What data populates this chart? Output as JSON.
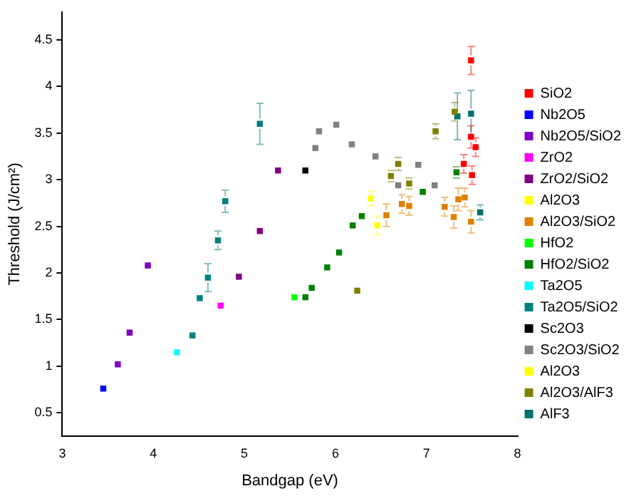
{
  "chart_data": {
    "type": "scatter",
    "xlabel": "Bandgap (eV)",
    "ylabel": "Threshold (J/cm²)",
    "xlim": [
      3,
      8
    ],
    "ylim": [
      0.25,
      4.8
    ],
    "xticks": [
      3,
      4,
      5,
      6,
      7,
      8
    ],
    "yticks": [
      0.5,
      1.0,
      1.5,
      2.0,
      2.5,
      3.0,
      3.5,
      4.0,
      4.5
    ],
    "grid": false,
    "legend": "right",
    "marker": "square",
    "series": [
      {
        "name": "SiO2",
        "color": "#ff0000",
        "x": [
          7.49,
          7.49,
          7.54,
          7.41,
          7.5
        ],
        "values": [
          4.28,
          3.46,
          3.35,
          3.17,
          3.05
        ],
        "errors": [
          0.15,
          0.12,
          0.1,
          0.1,
          0.1
        ]
      },
      {
        "name": "Nb2O5",
        "color": "#0000ff",
        "x": [
          3.45
        ],
        "values": [
          0.76
        ]
      },
      {
        "name": "Nb2O5/SiO2",
        "color": "#7f00c0",
        "x": [
          3.61,
          3.74,
          3.94
        ],
        "values": [
          1.02,
          1.36,
          2.08
        ]
      },
      {
        "name": "ZrO2",
        "color": "#ff00ff",
        "x": [
          4.74
        ],
        "values": [
          1.65
        ]
      },
      {
        "name": "ZrO2/SiO2",
        "color": "#800080",
        "x": [
          4.94,
          5.17,
          5.37
        ],
        "values": [
          1.96,
          2.45,
          3.1
        ]
      },
      {
        "name": "Al2O3",
        "color": "#ffff00",
        "x": [
          6.39,
          6.46
        ],
        "values": [
          2.8,
          2.51
        ],
        "errors": [
          0.08,
          0.1
        ]
      },
      {
        "name": "Al2O3/SiO2",
        "color": "#e08000",
        "x": [
          6.56,
          6.73,
          6.81,
          7.2,
          7.3,
          7.35,
          7.42,
          7.49
        ],
        "values": [
          2.62,
          2.74,
          2.72,
          2.71,
          2.6,
          2.79,
          2.81,
          2.55
        ],
        "errors": [
          0.12,
          0.1,
          0.1,
          0.1,
          0.12,
          0.12,
          0.1,
          0.12
        ]
      },
      {
        "name": "HfO2",
        "color": "#00ff00",
        "x": [
          5.55
        ],
        "values": [
          1.74
        ]
      },
      {
        "name": "HfO2/SiO2",
        "color": "#008000",
        "x": [
          5.67,
          5.74,
          5.91,
          6.04,
          6.19,
          6.29,
          6.96,
          7.33
        ],
        "values": [
          1.74,
          1.84,
          2.06,
          2.22,
          2.51,
          2.61,
          2.87,
          3.08
        ],
        "errors": [
          null,
          null,
          null,
          null,
          null,
          null,
          null,
          0.06
        ]
      },
      {
        "name": "Ta2O5",
        "color": "#00ffff",
        "x": [
          4.26
        ],
        "values": [
          1.15
        ]
      },
      {
        "name": "Ta2O5/SiO2",
        "color": "#008080",
        "x": [
          4.43,
          4.51,
          4.6,
          4.71,
          4.79,
          5.17
        ],
        "values": [
          1.33,
          1.73,
          1.95,
          2.35,
          2.77,
          3.6
        ],
        "errors": [
          null,
          null,
          0.15,
          0.1,
          0.12,
          0.22
        ]
      },
      {
        "name": "Sc2O3",
        "color": "#000000",
        "x": [
          5.67
        ],
        "values": [
          3.1
        ]
      },
      {
        "name": "Sc2O3/SiO2",
        "color": "#808080",
        "x": [
          5.78,
          5.82,
          6.01,
          6.18,
          6.44,
          6.69,
          6.91,
          7.09
        ],
        "values": [
          3.34,
          3.52,
          3.59,
          3.38,
          3.25,
          2.94,
          3.16,
          2.94
        ]
      },
      {
        "name": "Al2O3",
        "color": "#ffff00"
      },
      {
        "name": "Al2O3/AlF3",
        "color": "#808000",
        "x": [
          6.24,
          6.61,
          6.69,
          6.81,
          7.1,
          7.31
        ],
        "values": [
          1.81,
          3.04,
          3.17,
          2.96,
          3.52,
          3.73
        ],
        "errors": [
          null,
          0.06,
          0.07,
          0.06,
          0.08,
          0.1
        ]
      },
      {
        "name": "AlF3",
        "color": "#006f6f",
        "x": [
          7.34,
          7.49,
          7.59
        ],
        "values": [
          3.68,
          3.71,
          2.65
        ],
        "errors": [
          0.25,
          0.25,
          0.08
        ]
      }
    ]
  }
}
